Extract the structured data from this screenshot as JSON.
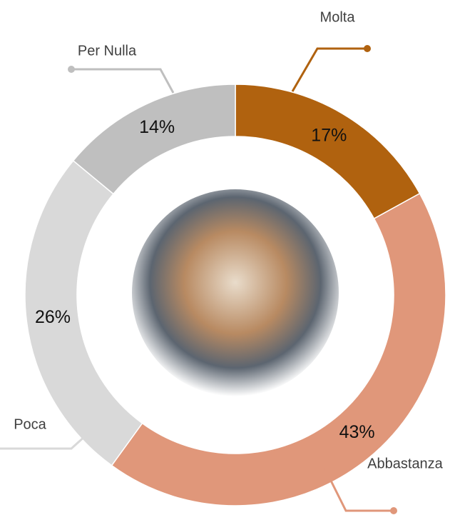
{
  "chart_data": {
    "type": "pie",
    "categories": [
      "Molta",
      "Abbastanza",
      "Poca",
      "Per Nulla"
    ],
    "values": [
      17,
      43,
      26,
      14
    ],
    "value_labels": [
      "17%",
      "43%",
      "26%",
      "14%"
    ],
    "colors": [
      "#b0620f",
      "#e0977a",
      "#d9d9d9",
      "#bfbfbf"
    ]
  }
}
